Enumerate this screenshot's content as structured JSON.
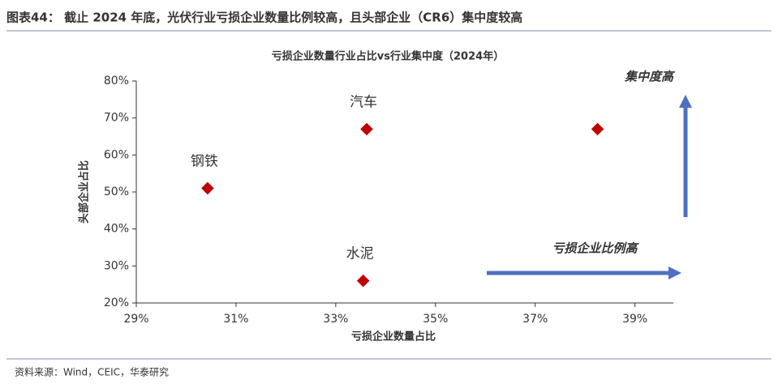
{
  "header": "图表44： 截止 2024 年底，光伏行业亏损企业数量比例较高，且头部企业（CR6）集中度较高",
  "source": "资料来源：Wind，CEIC，华泰研究",
  "chart_data": {
    "type": "scatter",
    "title": "亏损企业数量行业占比vs行业集中度（2024年）",
    "x_label": "亏损企业数量占比",
    "y_label": "头部企业占比",
    "labels": [
      "钢铁",
      "汽车",
      null,
      "水泥"
    ],
    "x": [
      30.43,
      33.62,
      38.25,
      33.55
    ],
    "values": [
      51,
      67,
      67,
      26
    ],
    "color": "#c00000",
    "xlim": [
      29,
      39.77
    ],
    "ylim": [
      20,
      80
    ],
    "xticks": [
      {
        "value": 29,
        "label": "29%"
      },
      {
        "value": 31,
        "label": "31%"
      },
      {
        "value": 33,
        "label": "33%"
      },
      {
        "value": 35,
        "label": "35%"
      },
      {
        "value": 37,
        "label": "37%"
      },
      {
        "value": 39,
        "label": "39%"
      }
    ],
    "yticks": [
      {
        "value": 20,
        "label": "20%"
      },
      {
        "value": 30,
        "label": "30%"
      },
      {
        "value": 40,
        "label": "40%"
      },
      {
        "value": 50,
        "label": "50%"
      },
      {
        "value": 60,
        "label": "60%"
      },
      {
        "value": 70,
        "label": "70%"
      },
      {
        "value": 80,
        "label": "80%"
      }
    ],
    "annotations": [
      "集中度高",
      "亏损企业比例高"
    ],
    "annotation_color": "#4f6fc0"
  }
}
